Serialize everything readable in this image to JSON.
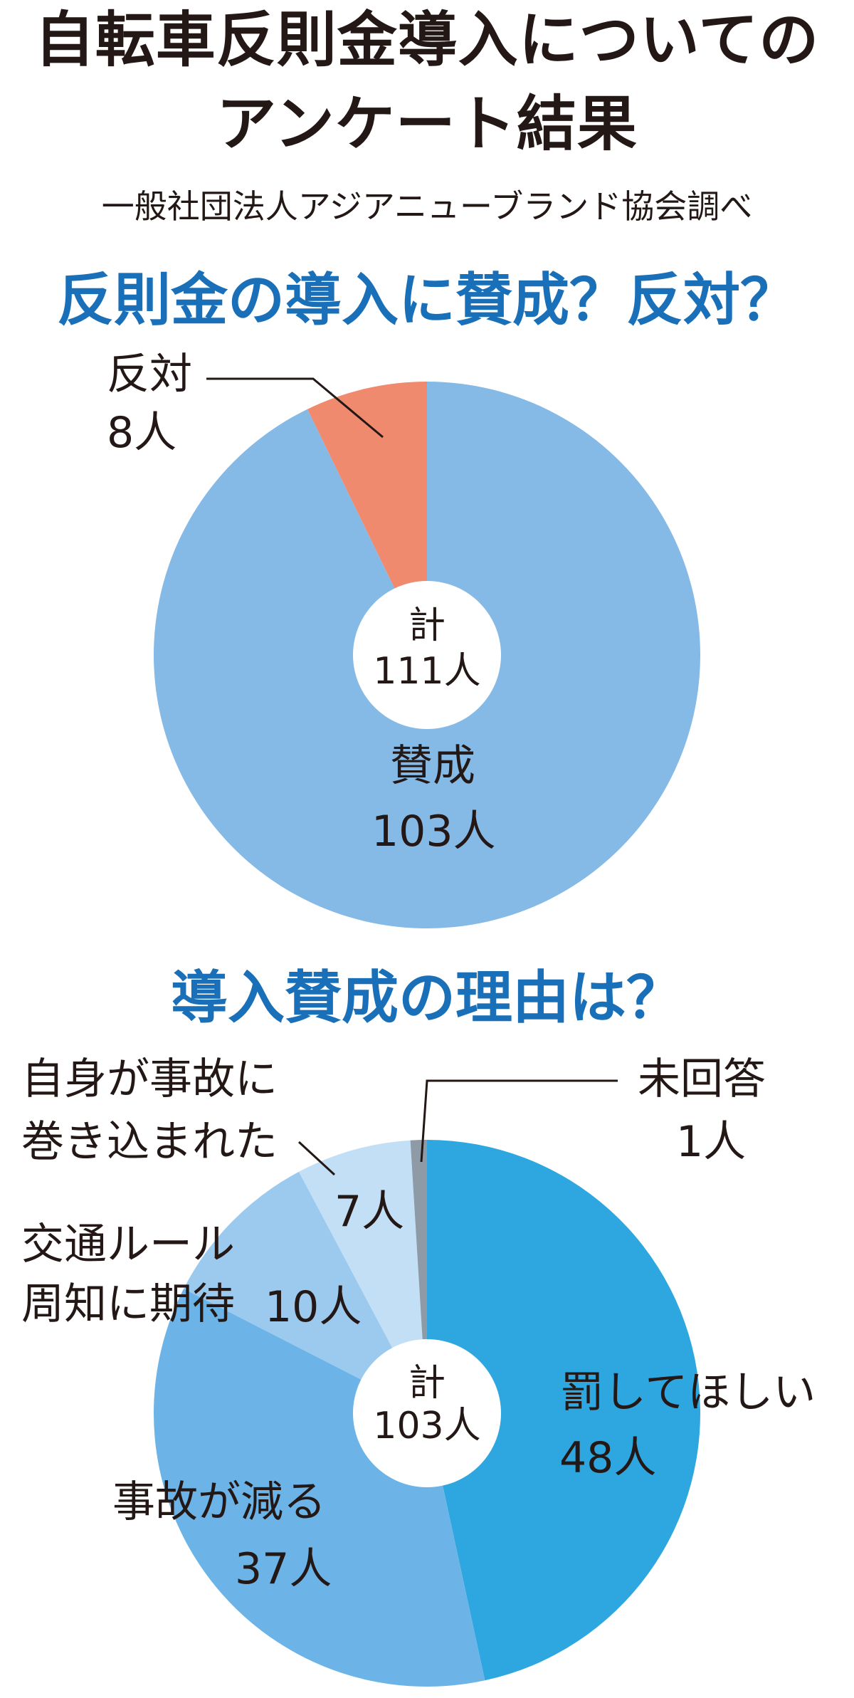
{
  "header": {
    "title_line1": "自転車反則金導入についての",
    "title_line2": "アンケート結果",
    "source": "一般社団法人アジアニューブランド協会調べ"
  },
  "chart_data": [
    {
      "type": "pie",
      "title": "反則金の導入に賛成？反対？",
      "total_label": "計",
      "total_value": "111人",
      "slices": [
        {
          "label": "賛成",
          "value": 103,
          "value_text": "103人",
          "color": "#85b9e6"
        },
        {
          "label": "反対",
          "value": 8,
          "value_text": "8人",
          "color": "#ef8a6f"
        }
      ]
    },
    {
      "type": "pie",
      "title": "導入賛成の理由は？",
      "total_label": "計",
      "total_value": "103人",
      "slices": [
        {
          "label": "罰してほしい",
          "value": 48,
          "value_text": "48人",
          "color": "#2ea7e0"
        },
        {
          "label": "事故が減る",
          "value": 37,
          "value_text": "37人",
          "color": "#6cb4e8"
        },
        {
          "label_line1": "交通ルール",
          "label_line2": "周知に期待",
          "value": 10,
          "value_text": "10人",
          "color": "#9bcaee"
        },
        {
          "label_line1": "自身が事故に",
          "label_line2": "巻き込まれた",
          "value": 7,
          "value_text": "7人",
          "color": "#c2dff6"
        },
        {
          "label": "未回答",
          "value": 1,
          "value_text": "1人",
          "color": "#8e9ba6"
        }
      ]
    }
  ]
}
